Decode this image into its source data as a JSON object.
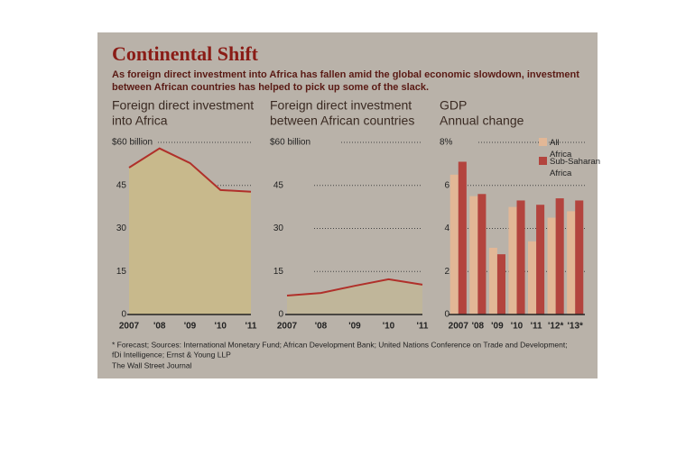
{
  "title": "Continental Shift",
  "subtitle": [
    "As foreign direct investment into Africa has fallen amid the global economic slowdown, investment",
    "between African countries has helped to pick up some of the slack."
  ],
  "note": [
    "* Forecast; Sources: International Monetary Fund; African Development Bank; United Nations Conference on Trade and Development;",
    "fDi Intelligence; Ernst & Young LLP"
  ],
  "source": "The Wall Street Journal",
  "chart_data": [
    {
      "type": "area",
      "title": [
        "Foreign direct investment",
        "into Africa"
      ],
      "categories": [
        "2007",
        "'08",
        "'09",
        "'10",
        "'11"
      ],
      "values": [
        51.2,
        57.9,
        52.8,
        43.4,
        42.8
      ],
      "color": "#b0302a",
      "fill": "#c8b98c",
      "ylim": [
        0,
        60
      ],
      "yticks": [
        0,
        15,
        30,
        45,
        {
          "value": 60,
          "label": "$60 billion"
        }
      ],
      "grid": true
    },
    {
      "type": "area",
      "title": [
        "Foreign direct investment",
        "between African countries"
      ],
      "categories": [
        "2007",
        "'08",
        "'09",
        "'10",
        "'11"
      ],
      "values": [
        6.6,
        7.5,
        10,
        12.3,
        10.4
      ],
      "color": "#b0302a",
      "fill": "#c8b98c",
      "ylim": [
        0,
        60
      ],
      "yticks": [
        0,
        15,
        30,
        45,
        {
          "value": 60,
          "label": "$60 billion"
        }
      ],
      "grid": true
    },
    {
      "type": "bar",
      "title": [
        "GDP",
        "Annual change"
      ],
      "categories": [
        "2007",
        "'08",
        "'09",
        "'10",
        "'11",
        "'12*",
        "'13*"
      ],
      "series": [
        {
          "name": "All Africa",
          "color": "#e2b796",
          "values": [
            6.5,
            5.5,
            3.1,
            5.0,
            3.4,
            4.5,
            4.8
          ]
        },
        {
          "name": "Sub-Saharan Africa",
          "color": "#b3443e",
          "values": [
            7.1,
            5.6,
            2.8,
            5.3,
            5.1,
            5.4,
            5.3
          ]
        }
      ],
      "ylim": [
        0,
        8
      ],
      "yticks": [
        0,
        2,
        4,
        6,
        {
          "value": 8,
          "label": "8%"
        }
      ],
      "grid": true
    }
  ]
}
